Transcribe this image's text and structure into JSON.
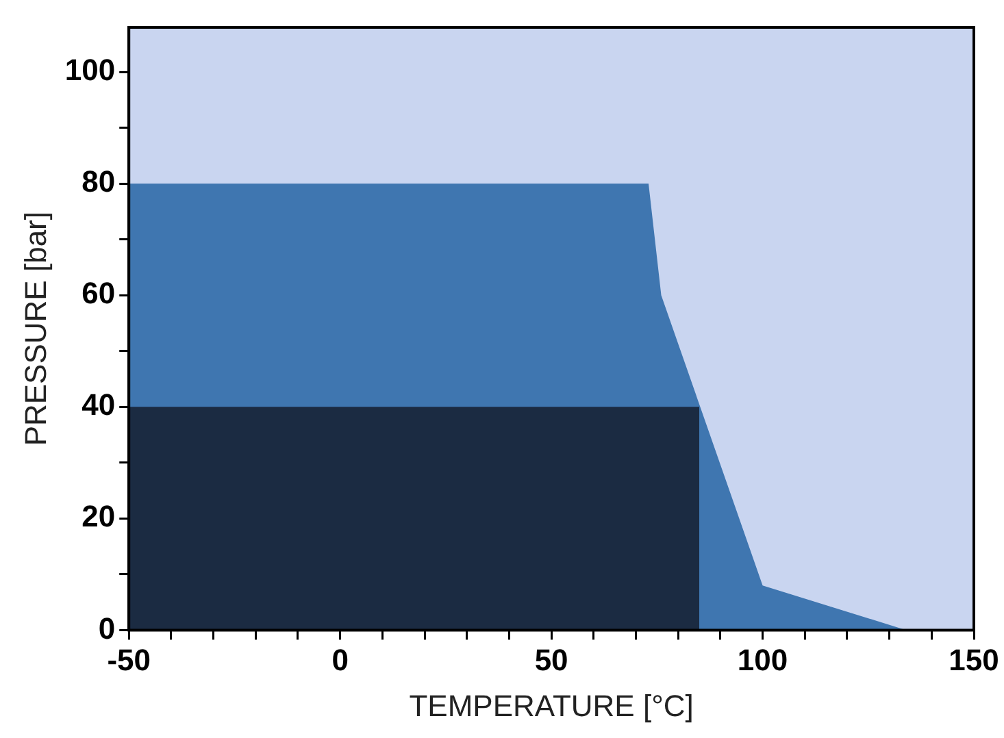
{
  "chart_data": {
    "type": "area",
    "xlabel": "TEMPERATURE [°C]",
    "ylabel": "PRESSURE [bar]",
    "xlim": [
      -50,
      150
    ],
    "ylim": [
      0,
      108
    ],
    "xticks": [
      -50,
      {
        "value": -40,
        "label": null
      },
      {
        "value": -30,
        "label": null
      },
      {
        "value": -20,
        "label": null
      },
      {
        "value": -10,
        "label": null
      },
      0,
      {
        "value": 10,
        "label": null
      },
      {
        "value": 20,
        "label": null
      },
      {
        "value": 30,
        "label": null
      },
      {
        "value": 40,
        "label": null
      },
      50,
      {
        "value": 60,
        "label": null
      },
      {
        "value": 70,
        "label": null
      },
      {
        "value": 80,
        "label": null
      },
      {
        "value": 90,
        "label": null
      },
      100,
      {
        "value": 110,
        "label": null
      },
      {
        "value": 120,
        "label": null
      },
      {
        "value": 130,
        "label": null
      },
      {
        "value": 140,
        "label": null
      },
      150
    ],
    "yticks": [
      0,
      {
        "value": 10,
        "label": null
      },
      20,
      {
        "value": 30,
        "label": null
      },
      40,
      {
        "value": 50,
        "label": null
      },
      60,
      {
        "value": 70,
        "label": null
      },
      80,
      {
        "value": 90,
        "label": null
      },
      100
    ],
    "legend": false,
    "bands": [
      {
        "axis": "x",
        "from": -50,
        "to": 150,
        "color": "#c9d5f0"
      }
    ],
    "series": [
      {
        "color": "#3f76b0",
        "x": [
          -50,
          73,
          76,
          100,
          134
        ],
        "values": [
          80,
          80,
          60,
          8,
          0
        ]
      },
      {
        "color": "#1b2b42",
        "x": [
          -50,
          85,
          85
        ],
        "values": [
          40,
          40,
          0
        ]
      }
    ]
  }
}
